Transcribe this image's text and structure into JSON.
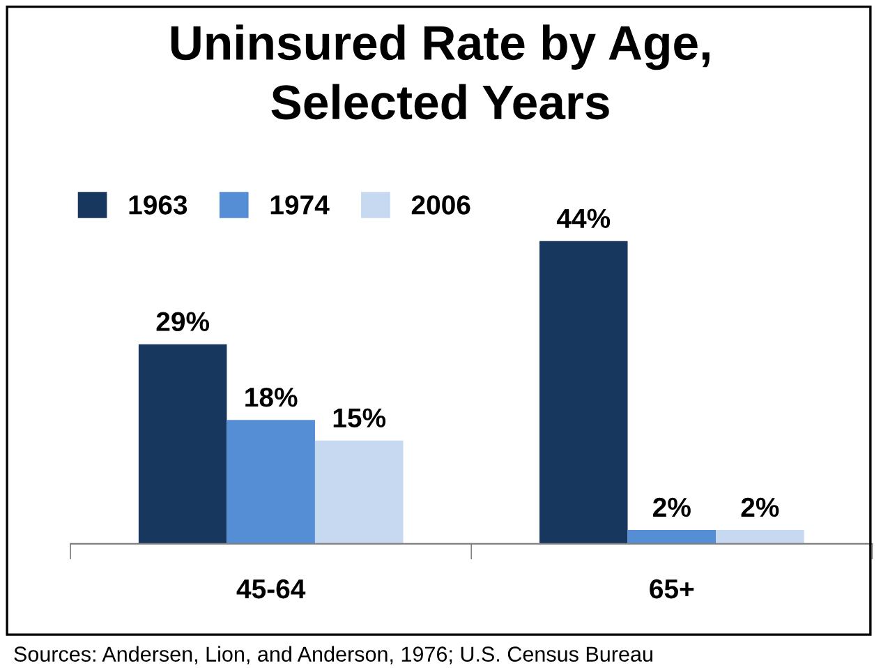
{
  "chart_data": {
    "type": "bar",
    "title": "Uninsured Rate by Age,\nSelected Years",
    "categories": [
      "45-64",
      "65+"
    ],
    "series": [
      {
        "name": "1963",
        "color": "#17375e",
        "values": [
          29,
          44
        ],
        "value_labels": [
          "29%",
          "44%"
        ]
      },
      {
        "name": "1974",
        "color": "#558ed5",
        "values": [
          18,
          2
        ],
        "value_labels": [
          "18%",
          "2%"
        ]
      },
      {
        "name": "2006",
        "color": "#c6d9f1",
        "values": [
          15,
          2
        ],
        "value_labels": [
          "15%",
          "2%"
        ]
      }
    ],
    "legend": "top left",
    "grid": false,
    "tick_labels": "x",
    "annotations": [
      "Sources: Andersen, Lion, and Anderson, 1976; U.S. Census Bureau"
    ]
  }
}
